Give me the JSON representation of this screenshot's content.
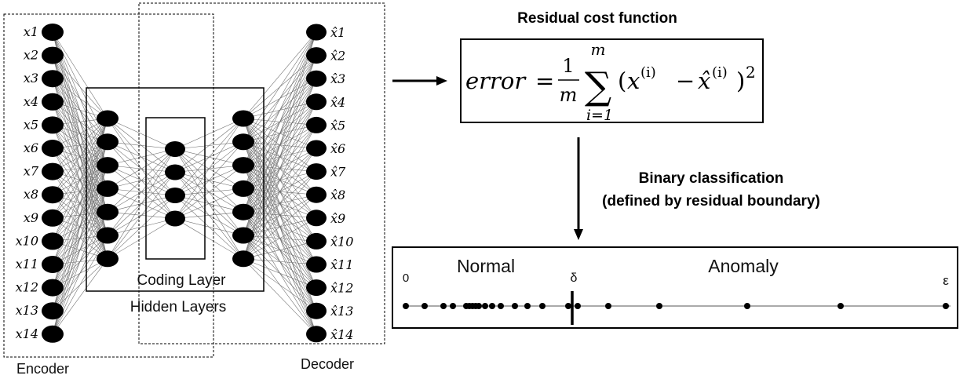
{
  "network": {
    "input_labels": [
      "x1",
      "x2",
      "x3",
      "x4",
      "x5",
      "x6",
      "x7",
      "x8",
      "x9",
      "x10",
      "x11",
      "x12",
      "x13",
      "x14"
    ],
    "output_labels": [
      "x̂1",
      "x̂2",
      "x̂3",
      "x̂4",
      "x̂5",
      "x̂6",
      "x̂7",
      "x̂8",
      "x̂9",
      "x̂10",
      "x̂11",
      "x̂12",
      "x̂13",
      "x̂14"
    ],
    "layer_sizes": [
      14,
      7,
      4,
      7,
      14
    ],
    "coding_layer_label": "Coding Layer",
    "hidden_layers_label": "Hidden Layers",
    "encoder_label": "Encoder",
    "decoder_label": "Decoder"
  },
  "cost": {
    "title": "Residual cost function",
    "lhs": "error",
    "eq": "=",
    "frac_num": "1",
    "frac_den": "m",
    "sum_upper": "m",
    "sum_lower": "i=1",
    "open_paren": "(",
    "term_x": "x",
    "sup_i": "(i)",
    "minus": "−",
    "term_xhat": "x̂",
    "sup_i2": "(i)",
    "close_paren": ")",
    "power": "2"
  },
  "classification": {
    "title_line1": "Binary classification",
    "title_line2": "(defined by residual boundary)"
  },
  "axis": {
    "normal_label": "Normal",
    "anomaly_label": "Anomaly",
    "zero_label": "0",
    "delta_label": "δ",
    "epsilon_label": "ε"
  }
}
